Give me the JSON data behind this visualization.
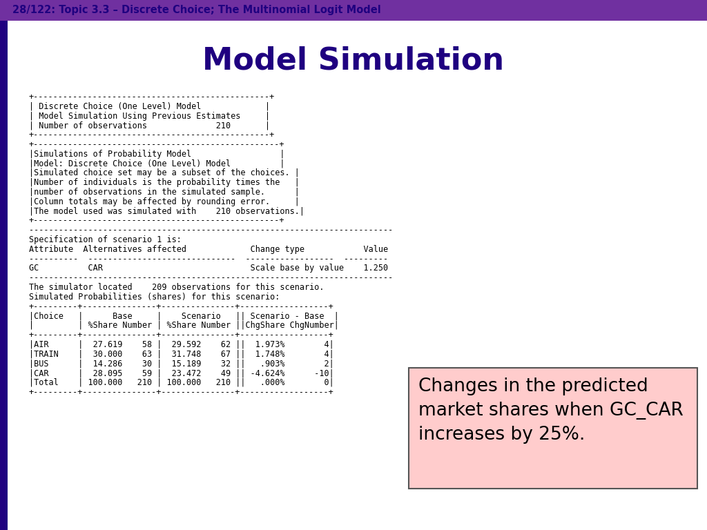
{
  "header_bar_color": "#7030a0",
  "header_text": "28/122: Topic 3.3 – Discrete Choice; The Multinomial Logit Model",
  "header_text_color": "#1f0080",
  "title": "Model Simulation",
  "title_color": "#1f0080",
  "left_bar_color": "#1f0080",
  "annotation_text": "Changes in the predicted\nmarket shares when GC_CAR\nincreases by 25%.",
  "annotation_bg": "#ffcccc",
  "annotation_border": "#555555",
  "bg_color": "#ffffff",
  "mono_lines": [
    "+------------------------------------------------+",
    "| Discrete Choice (One Level) Model             |",
    "| Model Simulation Using Previous Estimates     |",
    "| Number of observations              210       |",
    "+------------------------------------------------+",
    "+--------------------------------------------------+",
    "|Simulations of Probability Model                  |",
    "|Model: Discrete Choice (One Level) Model          |",
    "|Simulated choice set may be a subset of the choices. |",
    "|Number of individuals is the probability times the   |",
    "|number of observations in the simulated sample.      |",
    "|Column totals may be affected by rounding error.     |",
    "|The model used was simulated with    210 observations.|",
    "+--------------------------------------------------+",
    "--------------------------------------------------------------------------",
    "Specification of scenario 1 is:",
    "Attribute  Alternatives affected             Change type            Value",
    "----------  ------------------------------  ------------------  ---------",
    "GC          CAR                              Scale base by value    1.250",
    "--------------------------------------------------------------------------",
    "The simulator located    209 observations for this scenario.",
    "Simulated Probabilities (shares) for this scenario:",
    "+---------+---------------+---------------+------------------+",
    "|Choice   |      Base     |    Scenario   || Scenario - Base  |",
    "|         | %Share Number | %Share Number ||ChgShare ChgNumber|",
    "+---------+---------------+---------------+------------------+",
    "|AIR      |  27.619    58 |  29.592    62 ||  1.973%        4|",
    "|TRAIN    |  30.000    63 |  31.748    67 ||  1.748%        4|",
    "|BUS      |  14.286    30 |  15.189    32 ||   .903%        2|",
    "|CAR      |  28.095    59 |  23.472    49 || -4.624%      -10|",
    "|Total    | 100.000   210 | 100.000   210 ||   .000%        0|",
    "+---------+---------------+---------------+------------------+"
  ]
}
